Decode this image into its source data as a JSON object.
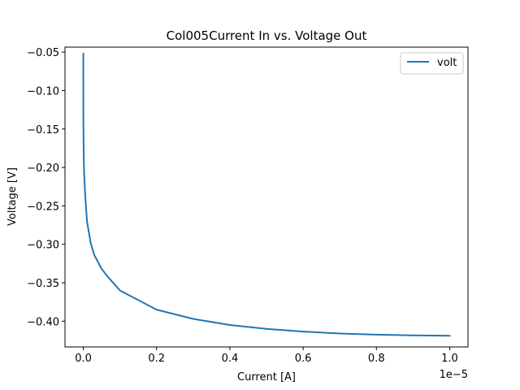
{
  "chart_data": {
    "type": "line",
    "title": "Col005Current In vs. Voltage Out",
    "xlabel": "Current [A]",
    "ylabel": "Voltage [V]",
    "x_offset_label": "1e−5",
    "x_scale_factor": 1e-05,
    "xlim": [
      -5e-07,
      1.05e-05
    ],
    "ylim": [
      -0.4335,
      -0.0435
    ],
    "x_ticks": [
      0,
      2e-06,
      4e-06,
      6e-06,
      8e-06,
      1e-05
    ],
    "x_tick_labels": [
      "0.0",
      "0.2",
      "0.4",
      "0.6",
      "0.8",
      "1.0"
    ],
    "y_ticks": [
      -0.05,
      -0.1,
      -0.15,
      -0.2,
      -0.25,
      -0.3,
      -0.35,
      -0.4
    ],
    "y_tick_labels": [
      "−0.05",
      "−0.10",
      "−0.15",
      "−0.20",
      "−0.25",
      "−0.30",
      "−0.35",
      "−0.40"
    ],
    "grid": false,
    "legend_position": "top-right",
    "series": [
      {
        "name": "volt",
        "color": "#1f77b4",
        "x": [
          0,
          1e-10,
          5e-10,
          1e-09,
          2e-09,
          5e-09,
          1e-08,
          2e-08,
          5e-08,
          1e-07,
          2e-07,
          3e-07,
          5e-07,
          7e-07,
          1e-06,
          2e-06,
          3e-06,
          4e-06,
          5e-06,
          6e-06,
          7e-06,
          8e-06,
          9e-06,
          1e-05
        ],
        "y": [
          -0.052,
          -0.075,
          -0.105,
          -0.12,
          -0.14,
          -0.16,
          -0.18,
          -0.205,
          -0.235,
          -0.27,
          -0.298,
          -0.314,
          -0.332,
          -0.344,
          -0.36,
          -0.385,
          -0.397,
          -0.405,
          -0.41,
          -0.4135,
          -0.416,
          -0.4175,
          -0.4185,
          -0.419
        ]
      }
    ]
  }
}
